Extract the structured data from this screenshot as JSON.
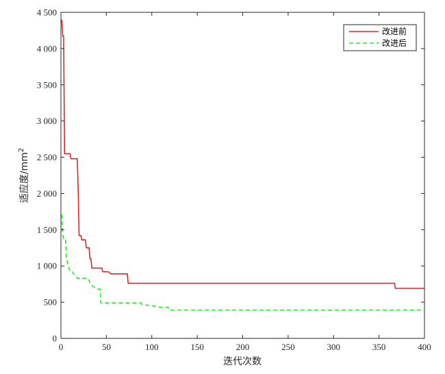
{
  "chart_data": {
    "type": "line",
    "xlabel": "迭代次数",
    "ylabel_main": "适应度/mm",
    "ylabel_sup": "2",
    "xlim": [
      0,
      400
    ],
    "ylim": [
      0,
      4500
    ],
    "x_ticks": [
      0,
      50,
      100,
      150,
      200,
      250,
      300,
      350,
      400
    ],
    "x_tick_labels": [
      "0",
      "50",
      "100",
      "150",
      "200",
      "250",
      "300",
      "350",
      "400"
    ],
    "y_ticks": [
      0,
      500,
      1000,
      1500,
      2000,
      2500,
      3000,
      3500,
      4000,
      4500
    ],
    "y_tick_labels": [
      "0",
      "500",
      "1 000",
      "1 500",
      "2 000",
      "2 500",
      "3 000",
      "3 500",
      "4 000",
      "4 500"
    ],
    "grid": false,
    "legend_position": "top-right",
    "series": [
      {
        "name": "改进前",
        "color": "#d62728",
        "style": "solid",
        "x": [
          0,
          1,
          2,
          3,
          4,
          5,
          10,
          11,
          15,
          16,
          18,
          19,
          20,
          22,
          23,
          25,
          27,
          28,
          30,
          31,
          32,
          33,
          34,
          35,
          36,
          40,
          45,
          46,
          50,
          52,
          55,
          60,
          65,
          70,
          73,
          74,
          100,
          150,
          200,
          250,
          300,
          350,
          367,
          368,
          370,
          400
        ],
        "y": [
          4390,
          4390,
          4170,
          4170,
          2550,
          2550,
          2550,
          2480,
          2480,
          2480,
          2480,
          2040,
          1420,
          1420,
          1360,
          1360,
          1360,
          1250,
          1250,
          1250,
          1100,
          1100,
          970,
          970,
          970,
          970,
          970,
          920,
          920,
          920,
          890,
          890,
          890,
          890,
          890,
          760,
          760,
          760,
          760,
          760,
          760,
          760,
          760,
          690,
          690,
          690
        ]
      },
      {
        "name": "改进后",
        "color": "#22ee22",
        "style": "dashed",
        "x": [
          0,
          1,
          2,
          3,
          5,
          6,
          8,
          10,
          12,
          15,
          18,
          20,
          25,
          30,
          32,
          35,
          40,
          43,
          44,
          50,
          60,
          70,
          80,
          88,
          89,
          100,
          110,
          118,
          119,
          150,
          200,
          250,
          300,
          350,
          400
        ],
        "y": [
          1700,
          1700,
          1420,
          1380,
          1380,
          1110,
          1000,
          930,
          930,
          870,
          830,
          830,
          830,
          830,
          760,
          720,
          680,
          680,
          490,
          490,
          490,
          490,
          490,
          490,
          470,
          450,
          430,
          430,
          390,
          390,
          390,
          390,
          390,
          390,
          390
        ]
      }
    ]
  }
}
